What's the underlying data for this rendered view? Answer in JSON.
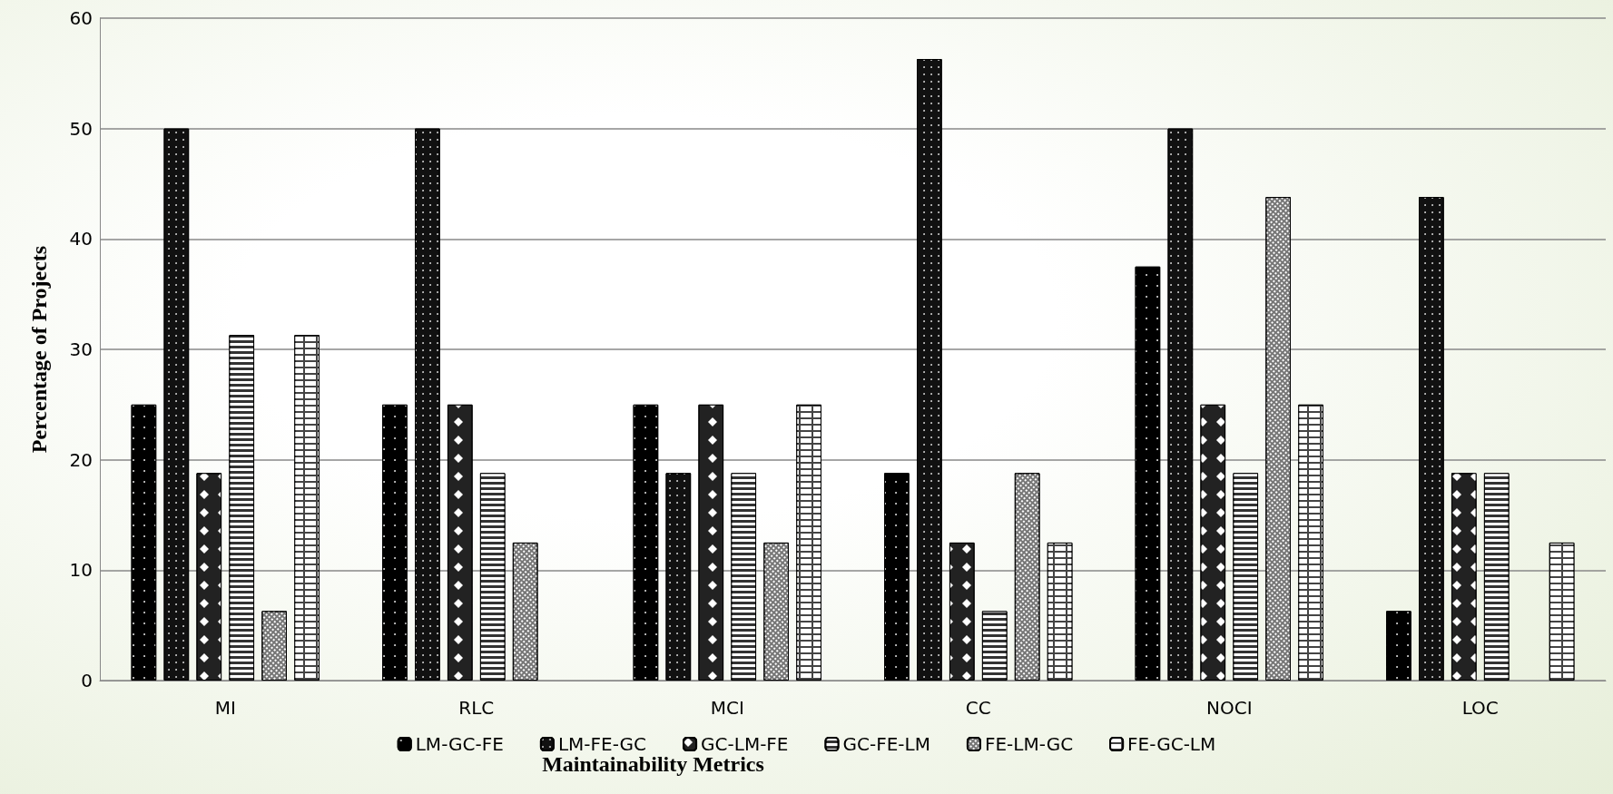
{
  "chart_data": {
    "type": "bar",
    "xlabel": "Maintainability Metrics",
    "ylabel": "Percentage of Projects",
    "categories": [
      "MI",
      "RLC",
      "MCI",
      "CC",
      "NOCI",
      "LOC"
    ],
    "series": [
      {
        "name": "LM-GC-FE",
        "color": "#000000",
        "values": [
          25,
          25,
          25,
          18.8,
          37.5,
          6.3
        ]
      },
      {
        "name": "LM-FE-GC",
        "color": "#111111",
        "values": [
          50,
          50,
          18.8,
          56.3,
          50,
          43.8
        ]
      },
      {
        "name": "GC-LM-FE",
        "color": "#222222",
        "values": [
          18.8,
          25,
          25,
          12.5,
          25,
          18.8
        ]
      },
      {
        "name": "GC-FE-LM",
        "color": "#333333",
        "values": [
          31.3,
          18.8,
          18.8,
          6.3,
          18.8,
          18.8
        ]
      },
      {
        "name": "FE-LM-GC",
        "color": "#777777",
        "values": [
          6.3,
          12.5,
          12.5,
          18.8,
          43.8,
          null
        ]
      },
      {
        "name": "FE-GC-LM",
        "color": "#444444",
        "values": [
          31.3,
          null,
          25,
          12.5,
          25,
          12.5
        ]
      }
    ],
    "ylim": [
      0,
      60
    ],
    "yticks": [
      0,
      10,
      20,
      30,
      40,
      50,
      60
    ],
    "grid": "y",
    "legend": "bottom"
  }
}
